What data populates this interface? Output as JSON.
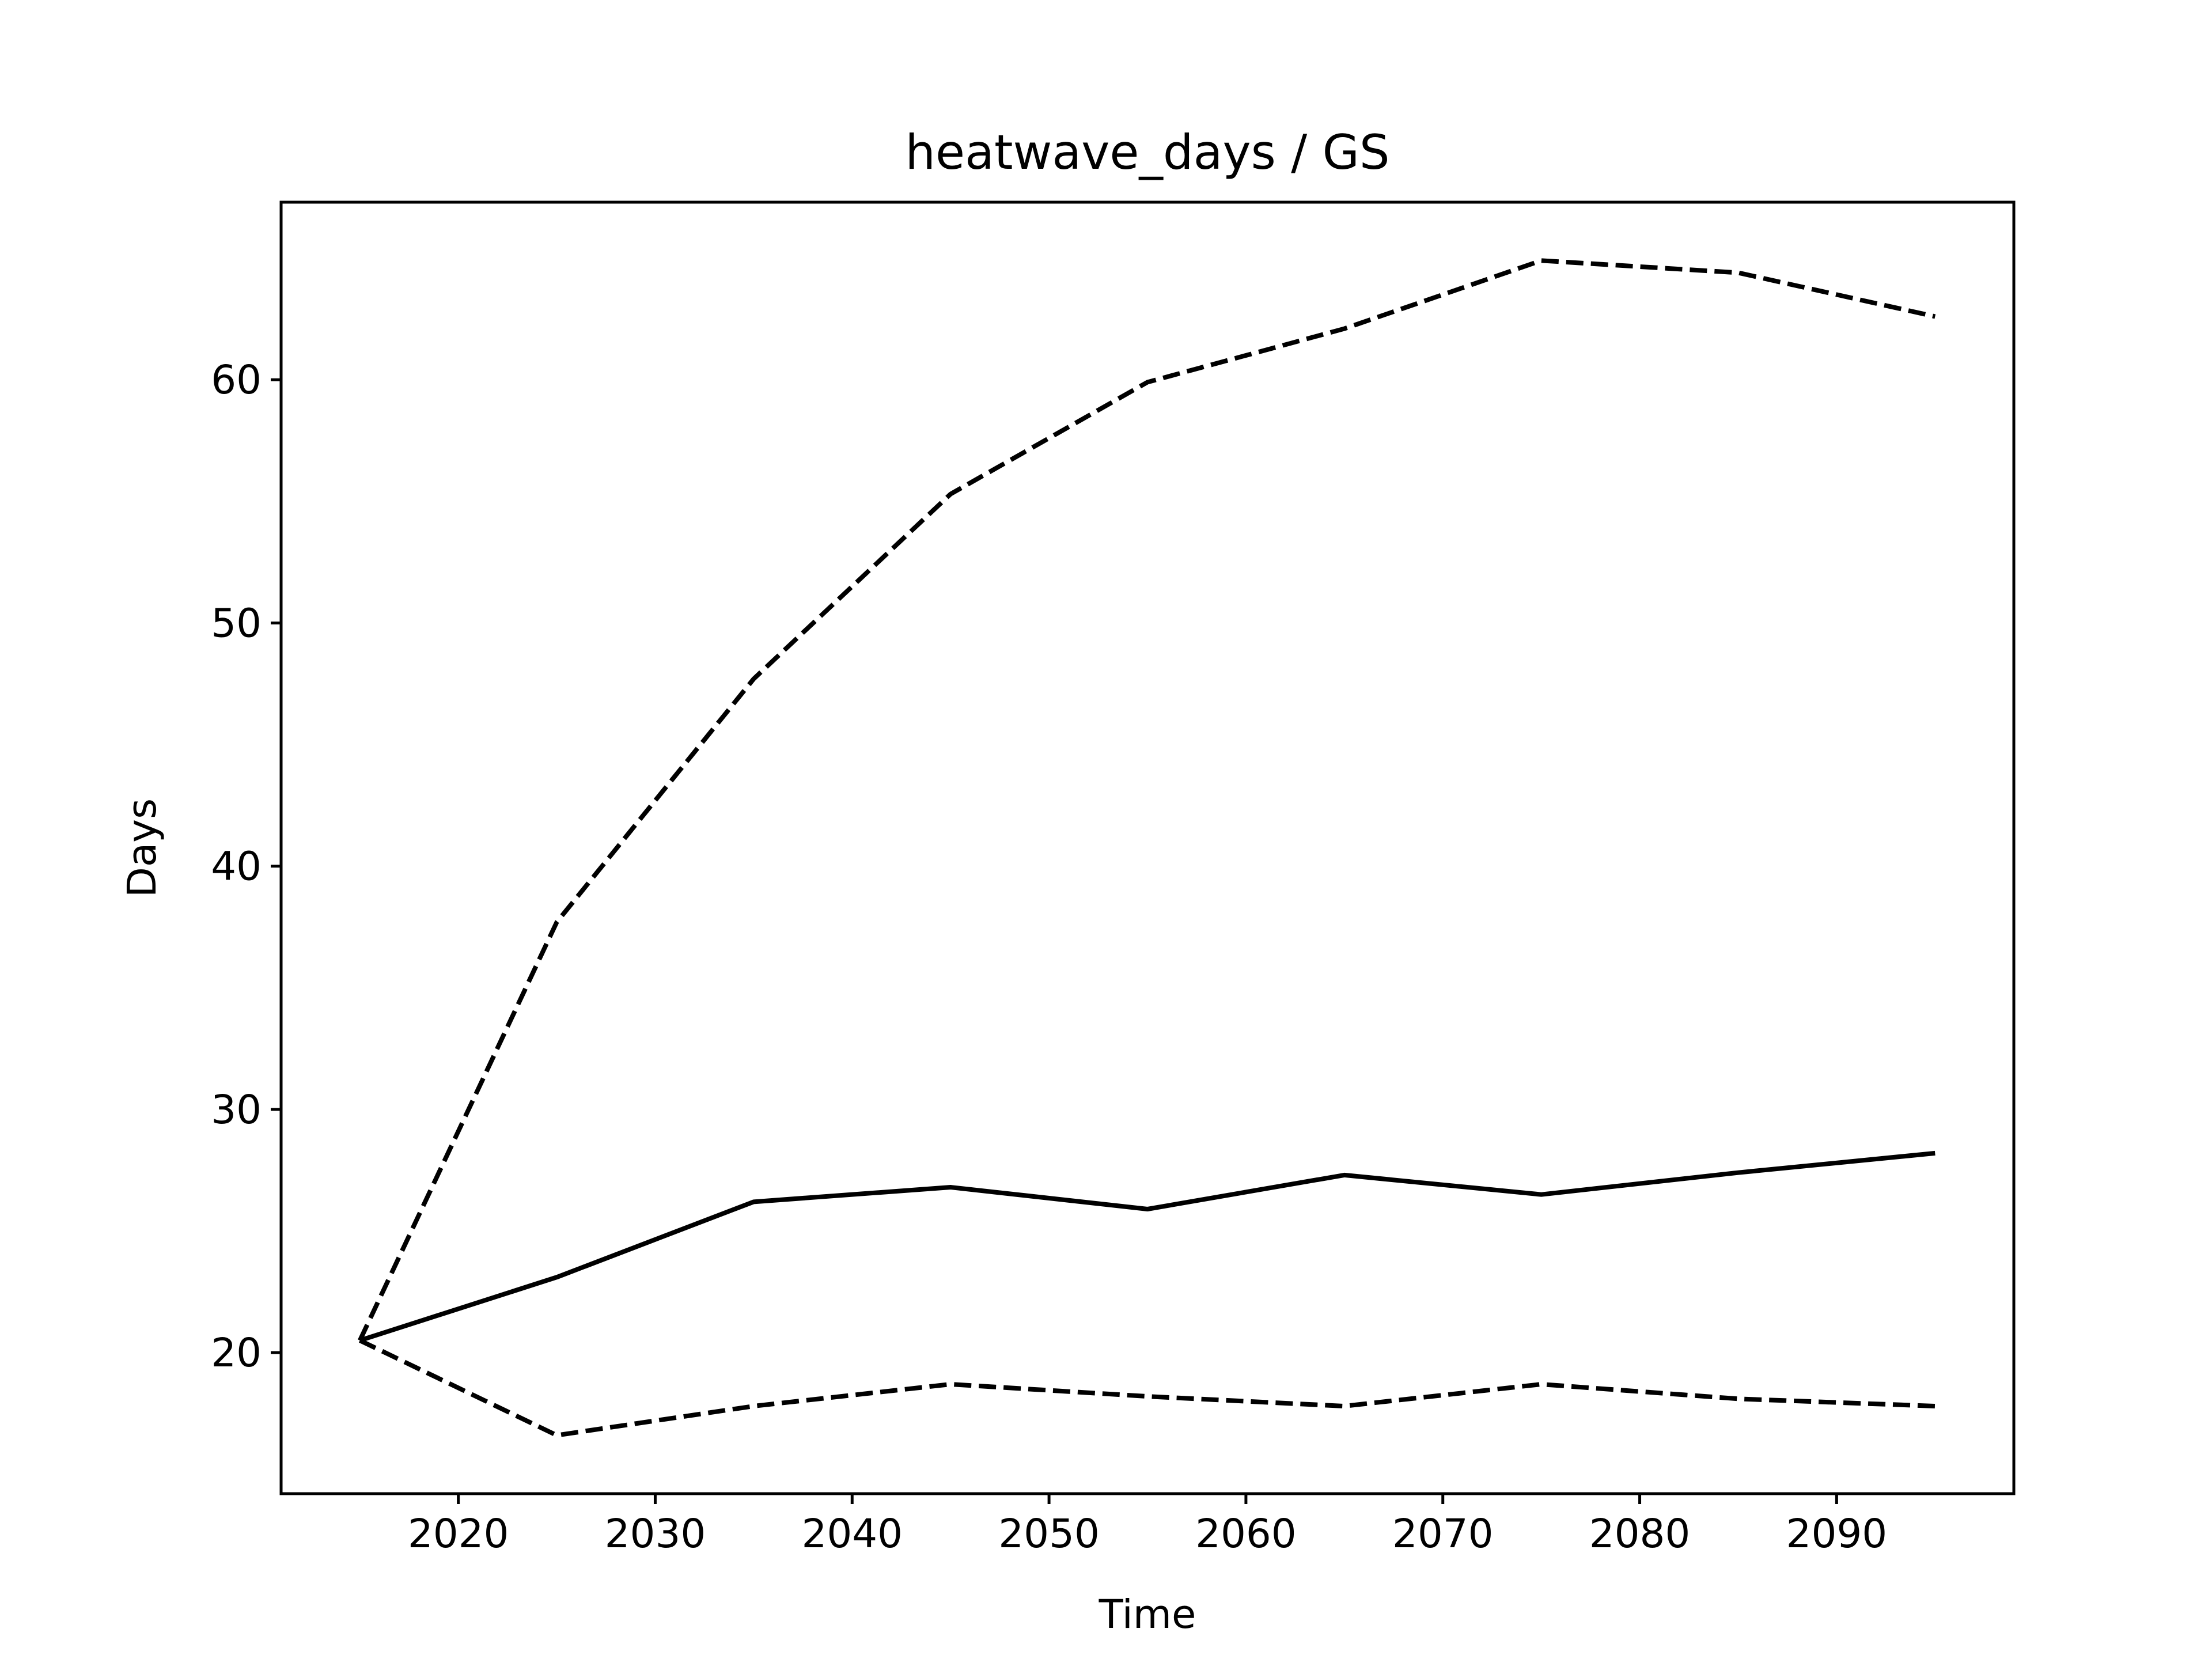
{
  "chart_data": {
    "type": "line",
    "title": "heatwave_days / GS",
    "xlabel": "Time",
    "ylabel": "Days",
    "x": [
      2015,
      2025,
      2035,
      2045,
      2055,
      2065,
      2075,
      2085,
      2095
    ],
    "xlim": [
      2011,
      2099
    ],
    "ylim": [
      14.2,
      67.3
    ],
    "xticks": [
      2020,
      2030,
      2040,
      2050,
      2060,
      2070,
      2080,
      2090
    ],
    "yticks": [
      20,
      30,
      40,
      50,
      60
    ],
    "grid": false,
    "series": [
      {
        "style": "solid",
        "color": "#000000",
        "values": [
          20.5,
          23.1,
          26.2,
          26.8,
          25.9,
          27.3,
          26.5,
          27.4,
          28.2
        ]
      },
      {
        "style": "dashed",
        "color": "#000000",
        "values": [
          20.5,
          37.7,
          47.7,
          55.3,
          59.9,
          62.1,
          64.9,
          64.4,
          62.6
        ]
      },
      {
        "style": "dashed",
        "color": "#000000",
        "values": [
          20.5,
          16.6,
          17.8,
          18.7,
          18.2,
          17.8,
          18.7,
          18.1,
          17.8
        ]
      }
    ]
  }
}
